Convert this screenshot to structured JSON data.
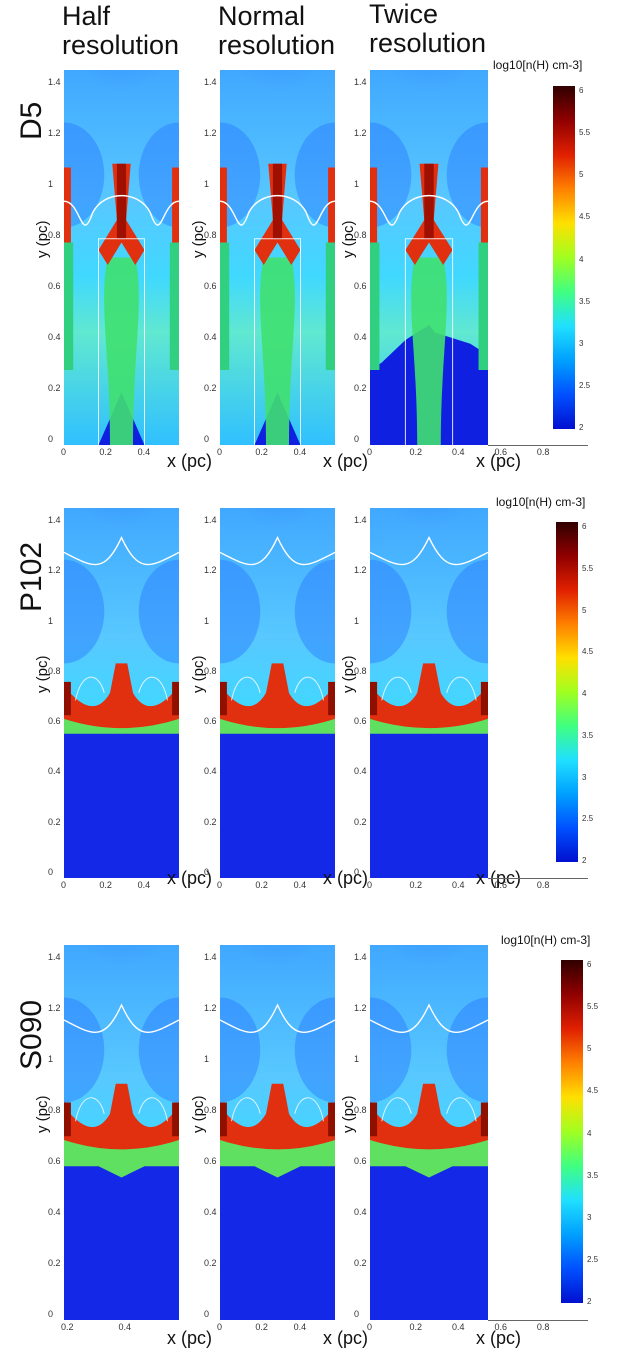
{
  "columns": [
    "Half\nresolution",
    "Normal\nresolution",
    "Twice\nresolution"
  ],
  "rows": [
    {
      "label": "D5",
      "panels": [
        {
          "yticks": [
            "1.4",
            "1.2",
            "1",
            "0.8",
            "0.6",
            "0.4",
            "0.2",
            "0"
          ],
          "xticks": [
            "0",
            "0.2",
            "0.4"
          ]
        },
        {
          "yticks": [
            "1.4",
            "1.2",
            "1",
            "0.8",
            "0.6",
            "0.4",
            "0.2",
            "0"
          ],
          "xticks": [
            "0",
            "0.2",
            "0.4"
          ]
        },
        {
          "yticks": [
            "1.4",
            "1.2",
            "1",
            "0.8",
            "0.6",
            "0.4",
            "0.2",
            "0"
          ],
          "xticks": [
            "0",
            "0.2",
            "0.4",
            "0.6",
            "0.8"
          ]
        }
      ],
      "colorbar": {
        "title": "log10[n(H) cm-3]",
        "ticks": [
          "6",
          "5.5",
          "5",
          "4.5",
          "4",
          "3.5",
          "3",
          "2.5",
          "2"
        ]
      }
    },
    {
      "label": "P102",
      "panels": [
        {
          "yticks": [
            "1.4",
            "1.2",
            "1",
            "0.8",
            "0.6",
            "0.4",
            "0.2",
            "0"
          ],
          "xticks": [
            "0",
            "0.2",
            "0.4"
          ]
        },
        {
          "yticks": [
            "1.4",
            "1.2",
            "1",
            "0.8",
            "0.6",
            "0.4",
            "0.2",
            "0"
          ],
          "xticks": [
            "0",
            "0.2",
            "0.4"
          ]
        },
        {
          "yticks": [
            "1.4",
            "1.2",
            "1",
            "0.8",
            "0.6",
            "0.4",
            "0.2",
            "0"
          ],
          "xticks": [
            "0",
            "0.2",
            "0.4",
            "0.6",
            "0.8"
          ]
        }
      ],
      "colorbar": {
        "title": "log10[n(H) cm-3]",
        "ticks": [
          "6",
          "5.5",
          "5",
          "4.5",
          "4",
          "3.5",
          "3",
          "2.5",
          "2"
        ]
      }
    },
    {
      "label": "S090",
      "panels": [
        {
          "yticks": [
            "1.4",
            "1.2",
            "1",
            "0.8",
            "0.6",
            "0.4",
            "0.2",
            "0"
          ],
          "xticks": [
            "0.2",
            "0.4"
          ]
        },
        {
          "yticks": [
            "1.4",
            "1.2",
            "1",
            "0.8",
            "0.6",
            "0.4",
            "0.2",
            "0"
          ],
          "xticks": [
            "0",
            "0.2",
            "0.4"
          ]
        },
        {
          "yticks": [
            "1.4",
            "1.2",
            "1",
            "0.8",
            "0.6",
            "0.4",
            "0.2",
            "0"
          ],
          "xticks": [
            "0",
            "0.2",
            "0.4",
            "0.6",
            "0.8"
          ]
        }
      ],
      "colorbar": {
        "title": "log10[n(H) cm-3]",
        "ticks": [
          "6",
          "5.5",
          "5",
          "4.5",
          "4",
          "3.5",
          "3",
          "2.5",
          "2"
        ]
      }
    }
  ],
  "axes": {
    "xlabel": "x (pc)",
    "ylabel": "y (pc)"
  },
  "colors": {
    "dense": "#1a30ff",
    "mid": "#30d0ff",
    "high": "#e03010",
    "peak": "#3a0000",
    "contour": "#ffffff"
  }
}
